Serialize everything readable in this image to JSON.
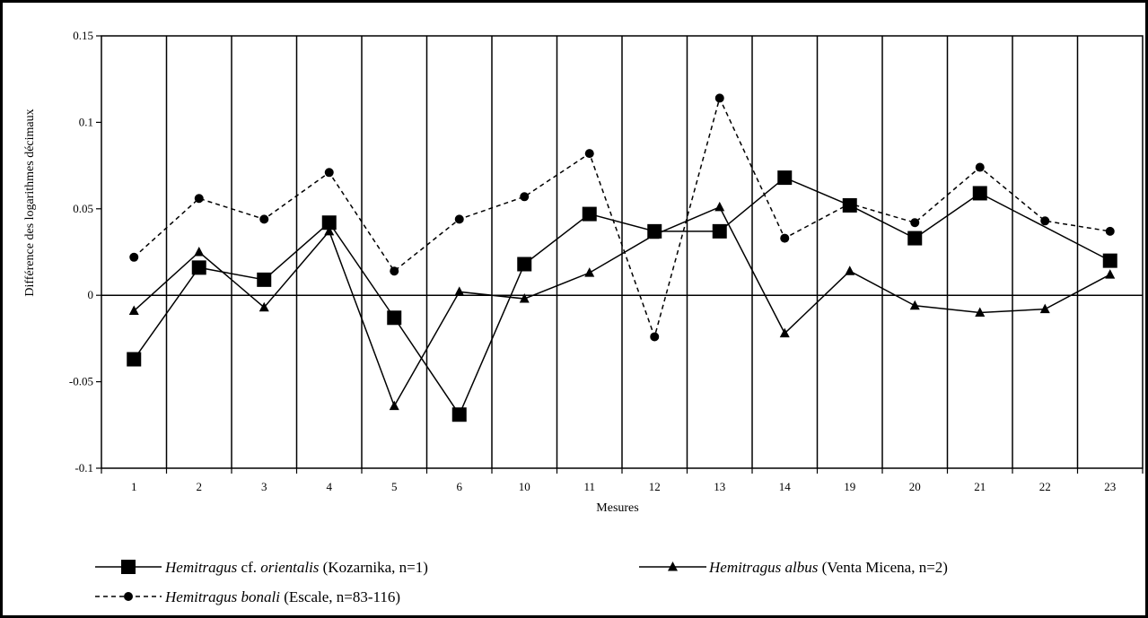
{
  "chart_data": {
    "type": "line",
    "xlabel": "Mesures",
    "ylabel": "Différence des logarithmes décimaux",
    "categories": [
      "1",
      "2",
      "3",
      "4",
      "5",
      "6",
      "10",
      "11",
      "12",
      "13",
      "14",
      "19",
      "20",
      "21",
      "22",
      "23"
    ],
    "ylim": [
      -0.1,
      0.15
    ],
    "yticks": [
      {
        "value": -0.1,
        "label": "-0.1"
      },
      {
        "value": -0.05,
        "label": "-0.05"
      },
      {
        "value": 0,
        "label": "0"
      },
      {
        "value": 0.05,
        "label": "0.05"
      },
      {
        "value": 0.1,
        "label": "0.1"
      },
      {
        "value": 0.15,
        "label": "0.15"
      }
    ],
    "grid": "vertical separators between categories",
    "zero_line": true,
    "legend_position": "bottom",
    "series": [
      {
        "name_italic_1": "Hemitragus",
        "name_plain_1": " cf. ",
        "name_italic_2": "orientalis",
        "name_plain_2": " (Kozarnika, n=1)",
        "marker": "square",
        "dash": "solid",
        "values": [
          -0.037,
          0.016,
          0.009,
          0.042,
          -0.013,
          -0.069,
          0.018,
          0.047,
          0.037,
          0.037,
          0.068,
          0.052,
          0.033,
          0.059,
          null,
          0.02
        ]
      },
      {
        "name_italic_1": "Hemitragus albus",
        "name_plain_1": " (Venta Micena, n=2)",
        "marker": "triangle",
        "dash": "solid",
        "values": [
          -0.009,
          0.025,
          -0.007,
          0.037,
          -0.064,
          0.002,
          -0.002,
          0.013,
          0.035,
          0.051,
          -0.022,
          0.014,
          -0.006,
          -0.01,
          -0.008,
          0.012
        ]
      },
      {
        "name_italic_1": "Hemitragus bonali",
        "name_plain_1": " (Escale, n=83-116)",
        "marker": "circle",
        "dash": "dashed",
        "values": [
          0.022,
          0.056,
          0.044,
          0.071,
          0.014,
          0.044,
          0.057,
          0.082,
          -0.024,
          0.114,
          0.033,
          0.053,
          0.042,
          0.074,
          0.043,
          0.037
        ]
      }
    ]
  }
}
